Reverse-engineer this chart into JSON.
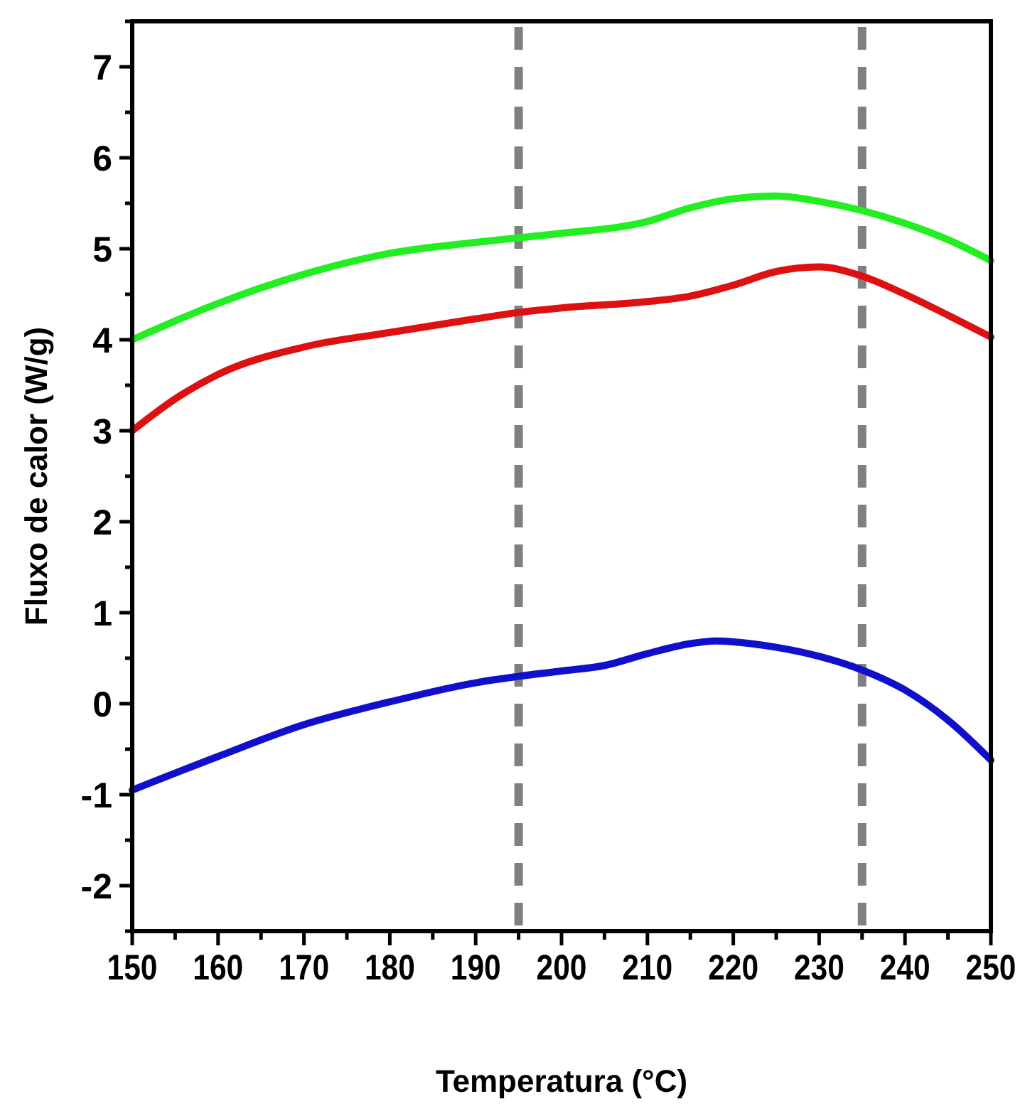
{
  "chart_data": {
    "type": "line",
    "xlabel": "Temperatura (°C)",
    "ylabel": "Fluxo de calor (W/g)",
    "xlim": [
      150,
      250
    ],
    "ylim": [
      -2.5,
      7.5
    ],
    "xticks": [
      150,
      {
        "value": 155,
        "label": null
      },
      160,
      {
        "value": 165,
        "label": null
      },
      170,
      {
        "value": 175,
        "label": null
      },
      180,
      {
        "value": 185,
        "label": null
      },
      190,
      {
        "value": 195,
        "label": null
      },
      200,
      {
        "value": 205,
        "label": null
      },
      210,
      {
        "value": 215,
        "label": null
      },
      220,
      {
        "value": 225,
        "label": null
      },
      230,
      {
        "value": 235,
        "label": null
      },
      240,
      {
        "value": 245,
        "label": null
      },
      250
    ],
    "yticks": [
      {
        "value": -2.5,
        "label": null
      },
      -2,
      {
        "value": -1.5,
        "label": null
      },
      -1,
      {
        "value": -0.5,
        "label": null
      },
      0,
      {
        "value": 0.5,
        "label": null
      },
      1,
      {
        "value": 1.5,
        "label": null
      },
      2,
      {
        "value": 2.5,
        "label": null
      },
      3,
      {
        "value": 3.5,
        "label": null
      },
      4,
      {
        "value": 4.5,
        "label": null
      },
      5,
      {
        "value": 5.5,
        "label": null
      },
      6,
      {
        "value": 6.5,
        "label": null
      },
      7,
      {
        "value": 7.5,
        "label": null
      }
    ],
    "grid": false,
    "marker": "none",
    "line_style": "solid",
    "series": [
      {
        "color": "#22ee22",
        "x": [
          150,
          160,
          170,
          180,
          190,
          195,
          200,
          210,
          215,
          220,
          225,
          230,
          235,
          240,
          245,
          250
        ],
        "values": [
          4.0,
          4.4,
          4.72,
          4.95,
          5.07,
          5.12,
          5.17,
          5.3,
          5.45,
          5.55,
          5.58,
          5.52,
          5.42,
          5.28,
          5.1,
          4.87
        ]
      },
      {
        "color": "#dd1111",
        "x": [
          150,
          155,
          160,
          170,
          180,
          190,
          195,
          200,
          210,
          215,
          220,
          225,
          230,
          235,
          240,
          245,
          250
        ],
        "values": [
          3.0,
          3.35,
          3.62,
          3.92,
          4.08,
          4.23,
          4.3,
          4.35,
          4.42,
          4.48,
          4.6,
          4.75,
          4.8,
          4.7,
          4.5,
          4.27,
          4.03
        ]
      },
      {
        "color": "#1010cc",
        "x": [
          150,
          160,
          170,
          180,
          190,
          195,
          200,
          205,
          210,
          215,
          218,
          220,
          225,
          230,
          235,
          240,
          245,
          250
        ],
        "values": [
          -0.95,
          -0.58,
          -0.23,
          0.02,
          0.23,
          0.3,
          0.36,
          0.42,
          0.55,
          0.66,
          0.69,
          0.68,
          0.62,
          0.52,
          0.37,
          0.15,
          -0.18,
          -0.62
        ]
      }
    ],
    "ref_lines": [
      {
        "axis": "x",
        "value": 195,
        "color": "#808080",
        "line_style": "dashed"
      },
      {
        "axis": "x",
        "value": 235,
        "color": "#808080",
        "line_style": "dashed"
      }
    ]
  }
}
